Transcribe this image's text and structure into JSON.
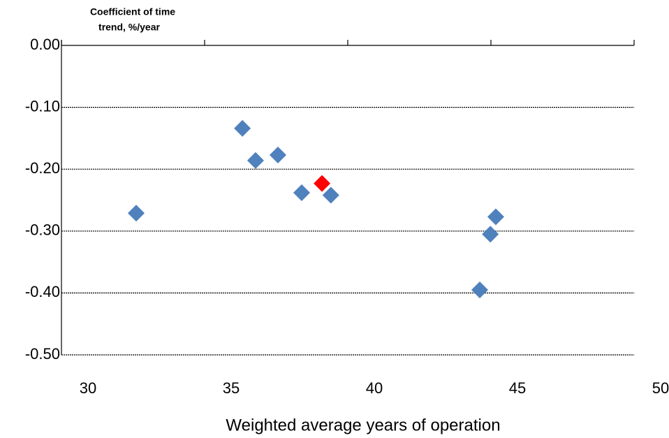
{
  "chart_data": {
    "type": "scatter",
    "y_label": [
      "Coefficient of time",
      "trend,  %/year"
    ],
    "x_label": "Weighted average years of operation",
    "xlim": [
      30,
      50
    ],
    "xticks": [
      30,
      35,
      40,
      45,
      50
    ],
    "ylim": [
      -0.5,
      0
    ],
    "yticks": [
      {
        "value": 0,
        "label": "0.00"
      },
      {
        "value": -0.1,
        "label": "-0.10"
      },
      {
        "value": -0.2,
        "label": "-0.20"
      },
      {
        "value": -0.3,
        "label": "-0.30"
      },
      {
        "value": -0.4,
        "label": "-0.40"
      },
      {
        "value": -0.5,
        "label": "-0.50"
      }
    ],
    "grid": true,
    "series": [
      {
        "color": "#4f81bd",
        "x": [
          32.61,
          36.32,
          36.78,
          37.56,
          38.39,
          39.41,
          45.17,
          44.98,
          44.61
        ],
        "values": [
          -0.271,
          -0.134,
          -0.186,
          -0.177,
          -0.238,
          -0.242,
          -0.277,
          -0.305,
          -0.395
        ]
      },
      {
        "color": "#ff0000",
        "x": [
          39.1
        ],
        "values": [
          -0.223
        ]
      }
    ]
  }
}
